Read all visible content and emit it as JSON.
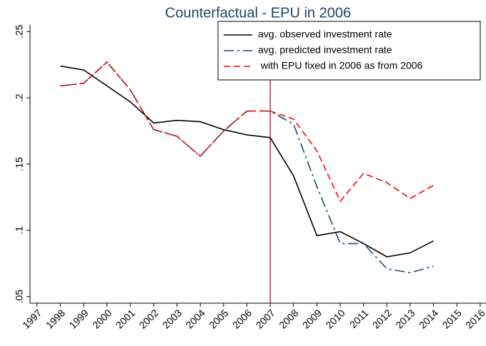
{
  "chart_data": {
    "type": "line",
    "title": "Counterfactual - EPU in 2006",
    "x": [
      1998,
      1999,
      2000,
      2001,
      2002,
      2003,
      2004,
      2005,
      2006,
      2007,
      2008,
      2009,
      2010,
      2011,
      2012,
      2013,
      2014
    ],
    "series": [
      {
        "name": "avg. observed investment rate",
        "color": "#000000",
        "style": "solid",
        "values": [
          0.224,
          0.221,
          0.209,
          0.197,
          0.181,
          0.183,
          0.182,
          0.176,
          0.172,
          0.17,
          0.141,
          0.096,
          0.099,
          0.09,
          0.08,
          0.083,
          0.092
        ]
      },
      {
        "name": "avg. predicted investment rate",
        "color": "#1a476f",
        "style": "dashdot",
        "values": [
          0.209,
          0.211,
          0.227,
          0.206,
          0.176,
          0.171,
          0.156,
          0.175,
          0.19,
          0.19,
          0.18,
          0.133,
          0.09,
          0.09,
          0.071,
          0.068,
          0.073
        ]
      },
      {
        "name": " with EPU fixed in 2006 as from 2006",
        "color": "#ff0000",
        "style": "dash",
        "values": [
          0.209,
          0.211,
          0.227,
          0.206,
          0.176,
          0.171,
          0.156,
          0.175,
          0.19,
          0.19,
          0.184,
          0.16,
          0.122,
          0.143,
          0.136,
          0.124,
          0.134
        ]
      }
    ],
    "xlim": [
      1996.7,
      2016.25
    ],
    "xticks": [
      1997,
      1998,
      1999,
      2000,
      2001,
      2002,
      2003,
      2004,
      2005,
      2006,
      2007,
      2008,
      2009,
      2010,
      2011,
      2012,
      2013,
      2014,
      2015,
      2016
    ],
    "ylim": [
      0.045,
      0.255
    ],
    "yticks": [
      {
        "value": 0.05,
        "label": ".05"
      },
      {
        "value": 0.1,
        "label": ".1"
      },
      {
        "value": 0.15,
        "label": ".15"
      },
      {
        "value": 0.2,
        "label": ".2"
      },
      {
        "value": 0.25,
        "label": ".25"
      }
    ],
    "vline": 2007,
    "vline_color": "#c10534",
    "legend": "top-right"
  }
}
